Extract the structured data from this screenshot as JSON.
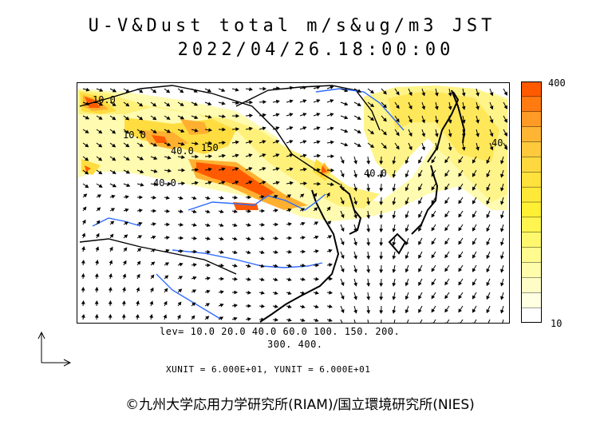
{
  "header": {
    "title": "U-V&Dust total m/s&ug/m3 JST",
    "datetime": "2022/04/26.18:00:00"
  },
  "colorbar": {
    "max_label": "400",
    "min_label": "10",
    "colors": [
      "#ff5a00",
      "#ff7b12",
      "#ff9a26",
      "#ffb534",
      "#ffc93d",
      "#ffd83f",
      "#ffe23c",
      "#ffe938",
      "#fff034",
      "#fff54f",
      "#fff86e",
      "#fffb8e",
      "#fffcab",
      "#fffdc6",
      "#ffffe2",
      "#ffffff"
    ]
  },
  "legend": {
    "levels_line1": "lev= 10.0 20.0 40.0 60.0 100. 150. 200.",
    "levels_line2": "300. 400.",
    "units": "XUNIT = 6.000E+01, YUNIT = 6.000E+01"
  },
  "map": {
    "contour_labels": [
      "10.0",
      "40.0",
      "150",
      "40.0",
      "40.0",
      "40.0",
      "10.0"
    ],
    "colors": {
      "ocean": "#ffffff",
      "coast": "#000000",
      "river": "#2f6bff",
      "vector": "#000000"
    }
  },
  "footer": {
    "copyright": "©九州大学応用力学研究所(RIAM)/国立環境研究所(NIES)"
  }
}
